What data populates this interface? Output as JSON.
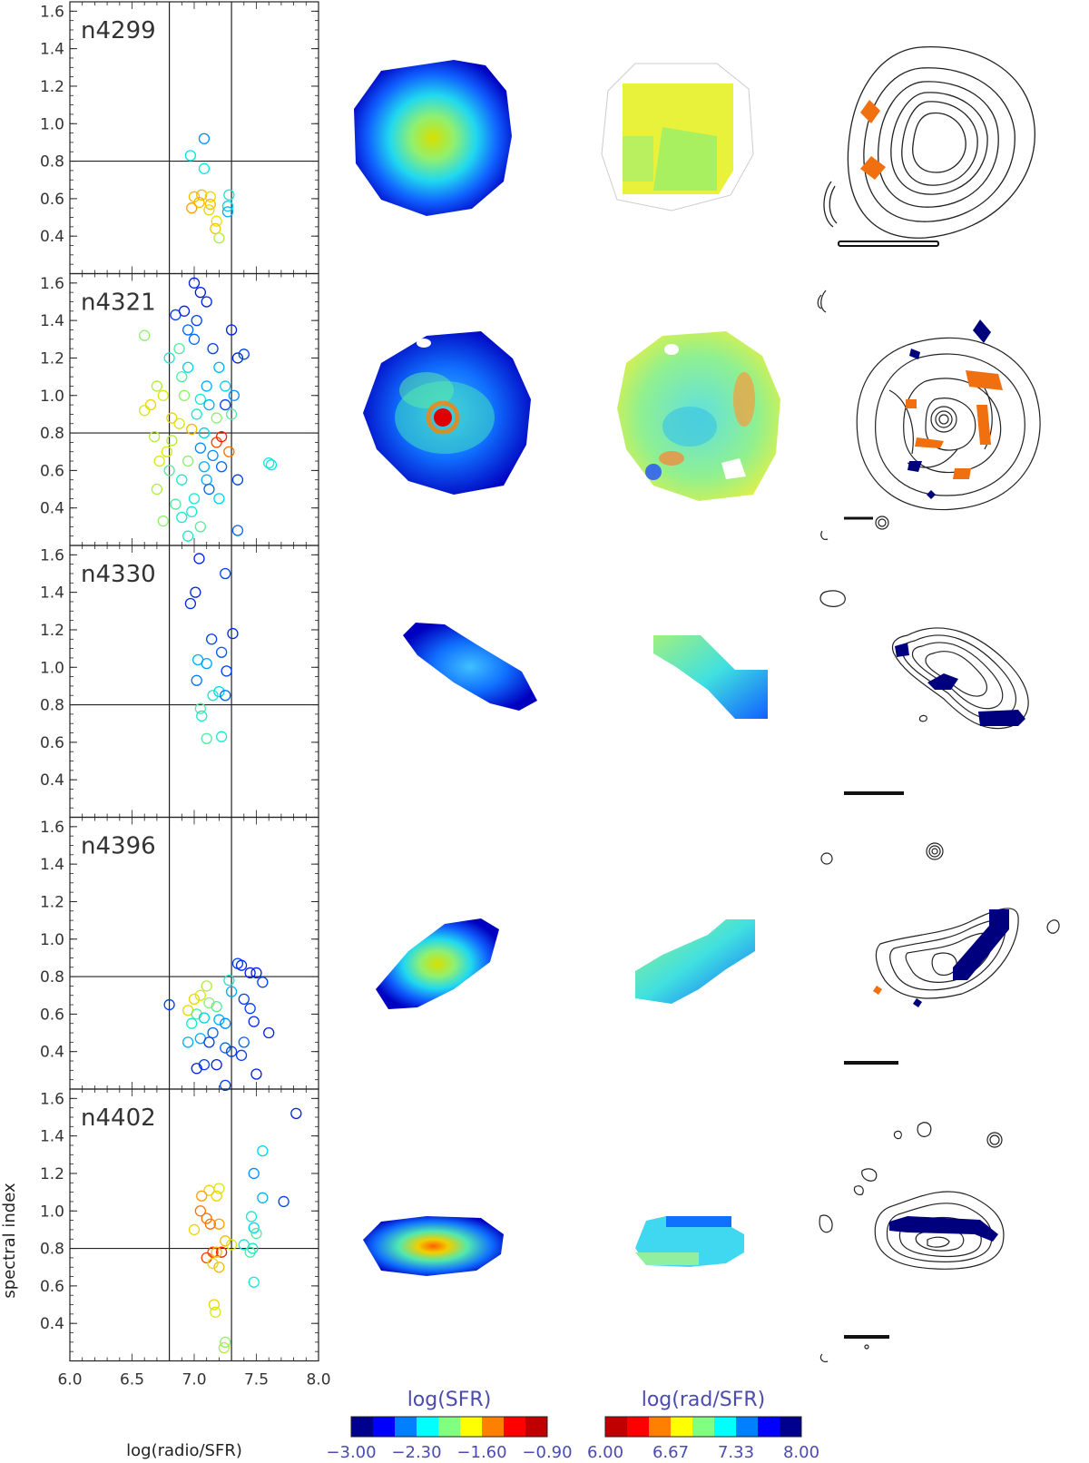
{
  "chart_data": {
    "type": "scatter",
    "xlabel": "log(radio/SFR)",
    "ylabel": "spectral index",
    "xlim": [
      6.0,
      8.0
    ],
    "ylim": [
      0.2,
      1.65
    ],
    "x_ticks": [
      "6.0",
      "6.5",
      "7.0",
      "7.5",
      "8.0"
    ],
    "y_ticks": [
      "0.4",
      "0.6",
      "0.8",
      "1.0",
      "1.2",
      "1.4",
      "1.6"
    ],
    "vertical_lines": [
      6.8,
      7.3
    ],
    "horizontal_line": 0.8,
    "colorbars": [
      {
        "title": "log(SFR)",
        "ticks": [
          "−3.00",
          "−2.30",
          "−1.60",
          "−0.90"
        ],
        "colors": [
          "#00008f",
          "#0000ff",
          "#0080ff",
          "#00ffff",
          "#80ff80",
          "#ffff00",
          "#ff8000",
          "#ff0000",
          "#c00000"
        ]
      },
      {
        "title": "log(rad/SFR)",
        "ticks": [
          "6.00",
          "6.67",
          "7.33",
          "8.00"
        ],
        "colors": [
          "#c00000",
          "#ff0000",
          "#ff8000",
          "#ffff00",
          "#80ff80",
          "#00ffff",
          "#0080ff",
          "#0000ff",
          "#00008f"
        ]
      }
    ],
    "panels": [
      {
        "name": "n4299",
        "points": [
          [
            7.08,
            0.92
          ],
          [
            6.97,
            0.83
          ],
          [
            7.08,
            0.76
          ],
          [
            7.06,
            0.62
          ],
          [
            7.13,
            0.61
          ],
          [
            7.13,
            0.57
          ],
          [
            7.04,
            0.58
          ],
          [
            7.12,
            0.54
          ],
          [
            7.28,
            0.62
          ],
          [
            7.27,
            0.56
          ],
          [
            7.27,
            0.53
          ],
          [
            7.18,
            0.48
          ],
          [
            7.17,
            0.44
          ],
          [
            7.2,
            0.39
          ],
          [
            6.98,
            0.55
          ],
          [
            7.0,
            0.61
          ]
        ],
        "cvals": [
          0.75,
          0.62,
          0.62,
          0.3,
          0.35,
          0.3,
          0.3,
          0.35,
          0.6,
          0.65,
          0.7,
          0.38,
          0.32,
          0.45,
          0.25,
          0.3
        ]
      },
      {
        "name": "n4321",
        "points": [
          [
            6.85,
            1.43
          ],
          [
            6.92,
            1.45
          ],
          [
            7.05,
            1.55
          ],
          [
            7.1,
            1.5
          ],
          [
            6.95,
            1.35
          ],
          [
            6.6,
            1.32
          ],
          [
            7.3,
            1.35
          ],
          [
            7.35,
            1.2
          ],
          [
            7.4,
            1.22
          ],
          [
            6.8,
            1.2
          ],
          [
            6.9,
            1.1
          ],
          [
            7.0,
            1.3
          ],
          [
            7.15,
            1.25
          ],
          [
            6.7,
            1.05
          ],
          [
            6.75,
            1.0
          ],
          [
            7.2,
            1.15
          ],
          [
            7.25,
            1.05
          ],
          [
            6.65,
            0.95
          ],
          [
            6.88,
            0.85
          ],
          [
            7.02,
            0.9
          ],
          [
            7.18,
            0.75
          ],
          [
            7.22,
            0.78
          ],
          [
            7.28,
            0.7
          ],
          [
            6.95,
            0.65
          ],
          [
            6.8,
            0.6
          ],
          [
            7.1,
            0.55
          ],
          [
            6.7,
            0.5
          ],
          [
            7.0,
            0.45
          ],
          [
            6.85,
            0.42
          ],
          [
            6.9,
            0.35
          ],
          [
            6.75,
            0.33
          ],
          [
            7.35,
            0.28
          ],
          [
            7.6,
            0.64
          ],
          [
            7.62,
            0.63
          ],
          [
            7.35,
            0.55
          ],
          [
            7.0,
            1.6
          ],
          [
            6.92,
            1.0
          ],
          [
            7.05,
            0.98
          ],
          [
            7.12,
            0.95
          ],
          [
            6.98,
            0.82
          ],
          [
            7.08,
            0.8
          ],
          [
            6.82,
            0.76
          ],
          [
            7.15,
            0.68
          ],
          [
            7.22,
            0.62
          ],
          [
            6.78,
            0.7
          ],
          [
            7.3,
            0.9
          ],
          [
            6.6,
            0.92
          ],
          [
            6.68,
            0.78
          ],
          [
            6.72,
            0.65
          ],
          [
            7.05,
            0.72
          ],
          [
            7.25,
            0.95
          ],
          [
            7.32,
            1.0
          ],
          [
            6.95,
            1.15
          ],
          [
            7.1,
            1.05
          ],
          [
            7.02,
            1.4
          ],
          [
            6.88,
            1.25
          ],
          [
            6.82,
            0.88
          ],
          [
            7.18,
            0.88
          ],
          [
            7.08,
            0.62
          ],
          [
            6.9,
            0.55
          ],
          [
            7.12,
            0.5
          ],
          [
            7.2,
            0.45
          ],
          [
            6.98,
            0.38
          ],
          [
            7.05,
            0.3
          ],
          [
            6.95,
            0.25
          ]
        ],
        "cvals": [
          0.85,
          0.9,
          0.92,
          0.9,
          0.8,
          0.5,
          0.9,
          0.9,
          0.85,
          0.6,
          0.55,
          0.8,
          0.85,
          0.45,
          0.4,
          0.7,
          0.65,
          0.35,
          0.4,
          0.6,
          0.15,
          0.1,
          0.2,
          0.5,
          0.55,
          0.7,
          0.45,
          0.6,
          0.55,
          0.6,
          0.5,
          0.8,
          0.6,
          0.62,
          0.85,
          0.9,
          0.5,
          0.6,
          0.7,
          0.3,
          0.65,
          0.45,
          0.75,
          0.8,
          0.4,
          0.55,
          0.4,
          0.45,
          0.4,
          0.75,
          0.85,
          0.75,
          0.65,
          0.7,
          0.85,
          0.55,
          0.35,
          0.5,
          0.7,
          0.6,
          0.8,
          0.65,
          0.6,
          0.55,
          0.6
        ]
      },
      {
        "name": "n4330",
        "points": [
          [
            7.04,
            1.58
          ],
          [
            7.25,
            1.5
          ],
          [
            7.01,
            1.4
          ],
          [
            6.97,
            1.34
          ],
          [
            7.31,
            1.18
          ],
          [
            7.14,
            1.15
          ],
          [
            7.22,
            1.08
          ],
          [
            7.03,
            1.04
          ],
          [
            7.1,
            1.02
          ],
          [
            7.26,
            0.98
          ],
          [
            7.02,
            0.93
          ],
          [
            7.2,
            0.87
          ],
          [
            7.15,
            0.85
          ],
          [
            7.25,
            0.85
          ],
          [
            7.05,
            0.78
          ],
          [
            7.06,
            0.74
          ],
          [
            7.1,
            0.62
          ],
          [
            7.22,
            0.63
          ]
        ],
        "cvals": [
          0.9,
          0.85,
          0.9,
          0.88,
          0.88,
          0.85,
          0.82,
          0.7,
          0.72,
          0.85,
          0.78,
          0.65,
          0.6,
          0.8,
          0.55,
          0.6,
          0.55,
          0.6
        ]
      },
      {
        "name": "n4396",
        "points": [
          [
            7.35,
            0.87
          ],
          [
            7.38,
            0.86
          ],
          [
            7.45,
            0.82
          ],
          [
            7.5,
            0.82
          ],
          [
            7.55,
            0.77
          ],
          [
            7.28,
            0.78
          ],
          [
            7.3,
            0.72
          ],
          [
            7.4,
            0.68
          ],
          [
            7.45,
            0.63
          ],
          [
            7.1,
            0.75
          ],
          [
            7.05,
            0.7
          ],
          [
            7.0,
            0.68
          ],
          [
            7.12,
            0.66
          ],
          [
            7.18,
            0.64
          ],
          [
            6.95,
            0.62
          ],
          [
            7.02,
            0.6
          ],
          [
            7.08,
            0.58
          ],
          [
            7.2,
            0.57
          ],
          [
            7.25,
            0.55
          ],
          [
            6.98,
            0.55
          ],
          [
            6.8,
            0.65
          ],
          [
            7.15,
            0.5
          ],
          [
            7.05,
            0.47
          ],
          [
            6.95,
            0.45
          ],
          [
            7.12,
            0.45
          ],
          [
            7.25,
            0.42
          ],
          [
            7.3,
            0.4
          ],
          [
            7.38,
            0.38
          ],
          [
            7.6,
            0.5
          ],
          [
            7.08,
            0.33
          ],
          [
            7.18,
            0.33
          ],
          [
            7.02,
            0.31
          ],
          [
            7.5,
            0.28
          ],
          [
            7.25,
            0.22
          ],
          [
            7.4,
            0.45
          ],
          [
            7.48,
            0.56
          ]
        ],
        "cvals": [
          0.85,
          0.88,
          0.9,
          0.9,
          0.85,
          0.6,
          0.7,
          0.85,
          0.85,
          0.45,
          0.4,
          0.35,
          0.5,
          0.55,
          0.35,
          0.55,
          0.65,
          0.7,
          0.75,
          0.6,
          0.85,
          0.8,
          0.7,
          0.7,
          0.85,
          0.8,
          0.85,
          0.85,
          0.9,
          0.85,
          0.9,
          0.9,
          0.9,
          0.85,
          0.8,
          0.88
        ]
      },
      {
        "name": "n4402",
        "points": [
          [
            7.82,
            1.52
          ],
          [
            7.55,
            1.32
          ],
          [
            7.48,
            1.2
          ],
          [
            7.2,
            1.12
          ],
          [
            7.12,
            1.11
          ],
          [
            7.06,
            1.08
          ],
          [
            7.05,
            1.0
          ],
          [
            7.18,
            1.08
          ],
          [
            7.55,
            1.07
          ],
          [
            7.1,
            0.96
          ],
          [
            7.2,
            0.93
          ],
          [
            7.0,
            0.9
          ],
          [
            7.13,
            0.93
          ],
          [
            7.46,
            0.97
          ],
          [
            7.48,
            0.91
          ],
          [
            7.72,
            1.05
          ],
          [
            7.5,
            0.88
          ],
          [
            7.4,
            0.82
          ],
          [
            7.25,
            0.84
          ],
          [
            7.3,
            0.82
          ],
          [
            7.15,
            0.78
          ],
          [
            7.22,
            0.78
          ],
          [
            7.1,
            0.75
          ],
          [
            7.2,
            0.7
          ],
          [
            7.15,
            0.72
          ],
          [
            7.45,
            0.78
          ],
          [
            7.47,
            0.8
          ],
          [
            7.48,
            0.62
          ],
          [
            7.16,
            0.5
          ],
          [
            7.17,
            0.46
          ],
          [
            7.25,
            0.3
          ],
          [
            7.24,
            0.27
          ],
          [
            7.18,
            0.78
          ]
        ],
        "cvals": [
          0.9,
          0.65,
          0.75,
          0.4,
          0.35,
          0.25,
          0.2,
          0.35,
          0.7,
          0.2,
          0.25,
          0.35,
          0.2,
          0.6,
          0.65,
          0.85,
          0.55,
          0.6,
          0.3,
          0.4,
          0.15,
          0.1,
          0.15,
          0.3,
          0.35,
          0.55,
          0.6,
          0.6,
          0.35,
          0.4,
          0.5,
          0.45,
          0.3
        ]
      }
    ]
  }
}
